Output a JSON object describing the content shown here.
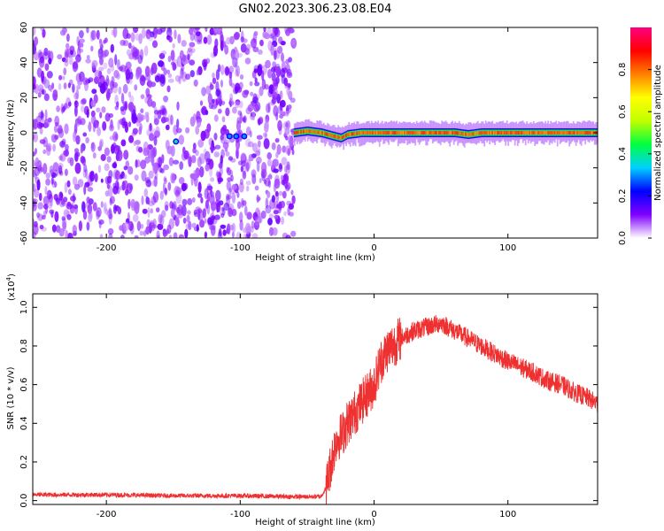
{
  "title": "GN02.2023.306.23.08.E04",
  "chart_data": [
    {
      "type": "heatmap",
      "xlabel": "Height of straight line (km)",
      "ylabel": "Frequency (Hz)",
      "xlim": [
        -255,
        167
      ],
      "ylim": [
        -60,
        60
      ],
      "xticks": [
        -200,
        -100,
        0,
        100
      ],
      "xtick_labels": [
        "-200",
        "-100",
        "0",
        "100"
      ],
      "yticks": [
        -60,
        -40,
        -20,
        0,
        20,
        40,
        60
      ],
      "ytick_labels": [
        "-60",
        "-40",
        "-20",
        "0",
        "20",
        "40",
        "60"
      ],
      "colorbar": {
        "label": "Normalized spectral amplitude",
        "range": [
          0,
          1
        ],
        "ticks": [
          0,
          0.2,
          0.4,
          0.6,
          0.8
        ],
        "tick_labels": [
          "0.0",
          "0.2",
          "0.4",
          "0.6",
          "0.8"
        ],
        "colors": [
          "#ffffff",
          "#8000ff",
          "#0000ff",
          "#00d0ff",
          "#00ff40",
          "#c0ff00",
          "#ffff00",
          "#ff8000",
          "#ff0000",
          "#ff0080"
        ]
      },
      "noise_region": {
        "x_range": [
          -255,
          -60
        ],
        "freq_range": [
          -60,
          60
        ]
      },
      "signal_line": {
        "x_range": [
          -60,
          167
        ],
        "freq_center": [
          [
            -60,
            0
          ],
          [
            -50,
            1
          ],
          [
            -40,
            0
          ],
          [
            -30,
            -2
          ],
          [
            -25,
            -3
          ],
          [
            -20,
            -1
          ],
          [
            -10,
            0
          ],
          [
            0,
            0
          ],
          [
            60,
            0
          ],
          [
            70,
            -1
          ],
          [
            80,
            0
          ],
          [
            167,
            0
          ]
        ],
        "amplitude": 0.85
      },
      "bright_spots": [
        {
          "x": -148,
          "freq": -5,
          "amplitude": 0.4
        },
        {
          "x": -108,
          "freq": -2,
          "amplitude": 0.3
        },
        {
          "x": -103,
          "freq": -2,
          "amplitude": 0.3
        },
        {
          "x": -97,
          "freq": -2,
          "amplitude": 0.3
        }
      ]
    },
    {
      "type": "line",
      "xlabel": "Height of straight line (km)",
      "ylabel": "SNR (10 * v/v)",
      "y_multiplier": "(x10",
      "y_multiplier_exp": "4",
      "y_multiplier_close": ")",
      "xlim": [
        -255,
        167
      ],
      "ylim": [
        -0.02,
        1.07
      ],
      "xticks": [
        -200,
        -100,
        0,
        100
      ],
      "xtick_labels": [
        "-200",
        "-100",
        "0",
        "100"
      ],
      "yticks": [
        0.0,
        0.2,
        0.4,
        0.6,
        0.8,
        1.0
      ],
      "ytick_labels": [
        "0.0",
        "0.2",
        "0.4",
        "0.6",
        "0.8",
        "1.0"
      ],
      "color": "#ee3030",
      "series": [
        {
          "x": [
            -255,
            -200,
            -150,
            -100,
            -60,
            -40,
            -36,
            -32,
            -28,
            -24,
            -20,
            -15,
            -10,
            -5,
            0,
            5,
            10,
            20,
            30,
            40,
            50,
            60,
            70,
            80,
            90,
            100,
            110,
            120,
            130,
            140,
            150,
            160,
            167
          ],
          "y": [
            0.03,
            0.03,
            0.025,
            0.025,
            0.02,
            0.02,
            0.06,
            0.2,
            0.32,
            0.34,
            0.4,
            0.45,
            0.5,
            0.55,
            0.6,
            0.72,
            0.78,
            0.84,
            0.88,
            0.9,
            0.92,
            0.88,
            0.84,
            0.8,
            0.76,
            0.72,
            0.69,
            0.66,
            0.62,
            0.6,
            0.56,
            0.53,
            0.5
          ]
        }
      ]
    }
  ]
}
